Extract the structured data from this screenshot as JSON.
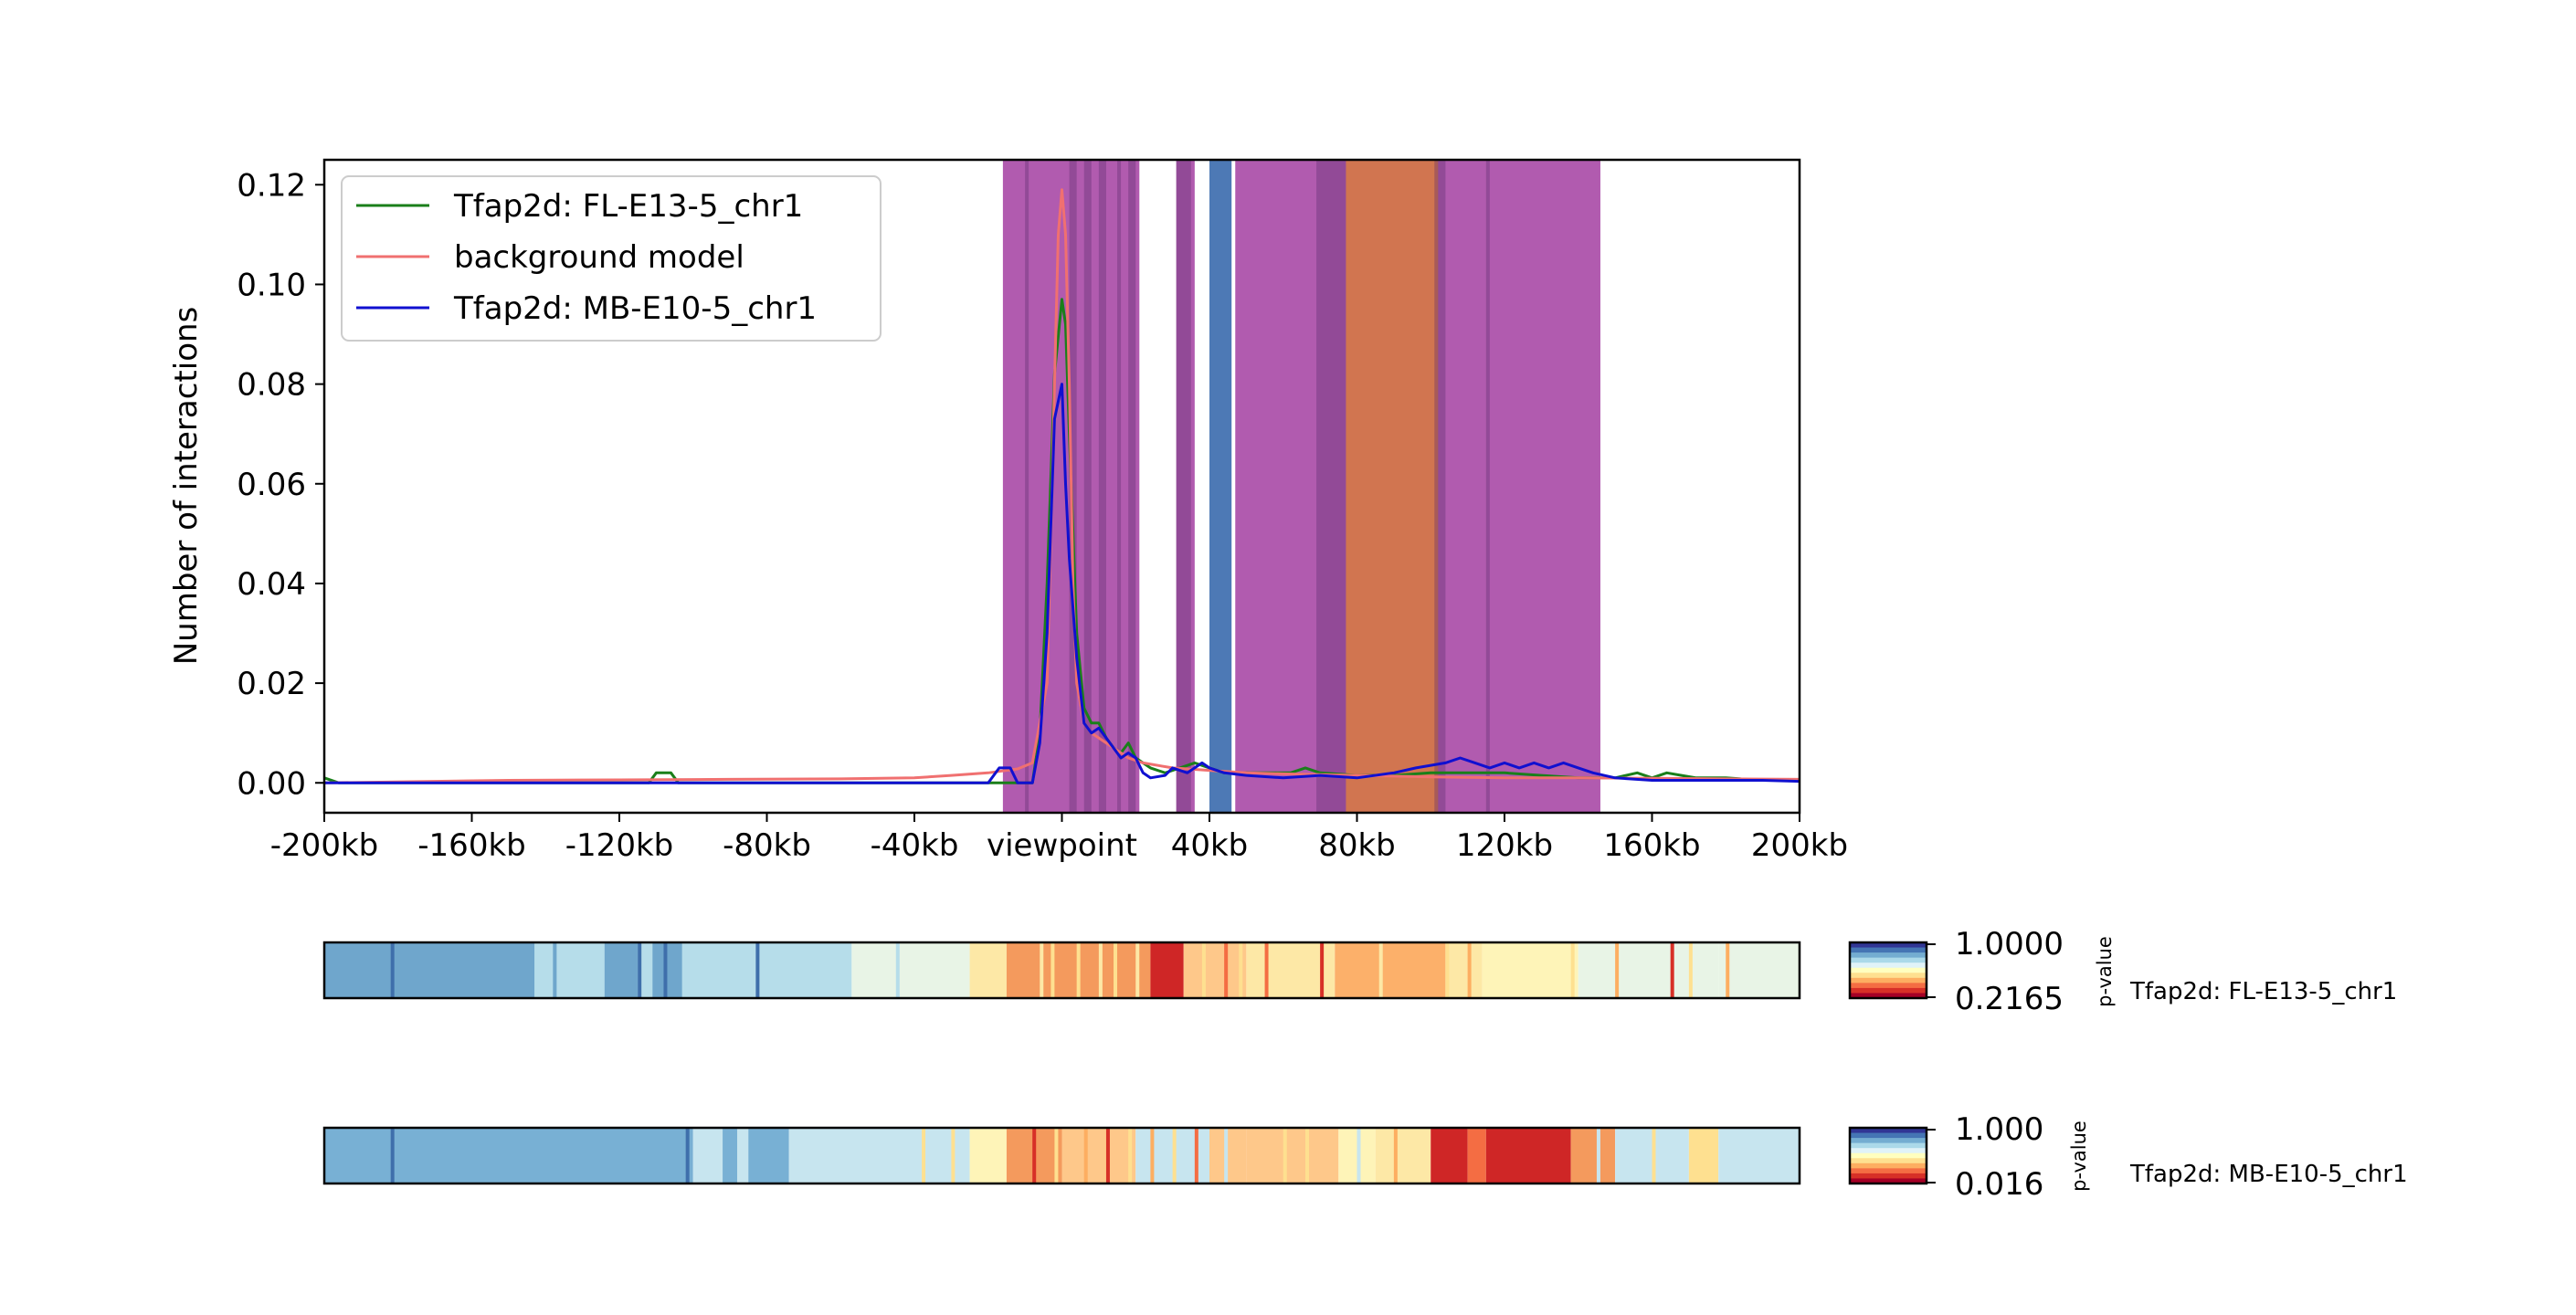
{
  "chart_data": [
    {
      "type": "line",
      "ylabel": "Number of interactions",
      "xlim": [
        -200,
        200
      ],
      "ylim": [
        -0.006,
        0.125
      ],
      "x_ticks": [
        -200,
        -160,
        -120,
        -80,
        -40,
        0,
        40,
        80,
        120,
        160,
        200
      ],
      "x_tick_labels": [
        "-200kb",
        "-160kb",
        "-120kb",
        "-80kb",
        "-40kb",
        "viewpoint",
        "40kb",
        "80kb",
        "120kb",
        "160kb",
        "200kb"
      ],
      "y_ticks": [
        0.0,
        0.02,
        0.04,
        0.06,
        0.08,
        0.1,
        0.12
      ],
      "y_tick_labels": [
        "0.00",
        "0.02",
        "0.04",
        "0.06",
        "0.08",
        "0.10",
        "0.12"
      ],
      "legend_position": "top-left",
      "series": [
        {
          "name": "Tfap2d:  FL-E13-5_chr1",
          "color": "#1a7f1a",
          "points": [
            [
              -200,
              0.001
            ],
            [
              -196,
              0.0
            ],
            [
              -150,
              0.0
            ],
            [
              -112,
              0.0
            ],
            [
              -110,
              0.002
            ],
            [
              -106,
              0.002
            ],
            [
              -104,
              0.0
            ],
            [
              -90,
              0.0
            ],
            [
              -60,
              0.0
            ],
            [
              -20,
              0.0
            ],
            [
              -8,
              0.0
            ],
            [
              -6,
              0.01
            ],
            [
              -4,
              0.04
            ],
            [
              -2,
              0.082
            ],
            [
              0,
              0.097
            ],
            [
              1,
              0.092
            ],
            [
              2,
              0.07
            ],
            [
              4,
              0.03
            ],
            [
              6,
              0.015
            ],
            [
              8,
              0.012
            ],
            [
              10,
              0.012
            ],
            [
              12,
              0.009
            ],
            [
              14,
              0.007
            ],
            [
              16,
              0.006
            ],
            [
              18,
              0.008
            ],
            [
              20,
              0.005
            ],
            [
              24,
              0.003
            ],
            [
              28,
              0.002
            ],
            [
              32,
              0.003
            ],
            [
              36,
              0.004
            ],
            [
              40,
              0.003
            ],
            [
              44,
              0.002
            ],
            [
              50,
              0.002
            ],
            [
              56,
              0.002
            ],
            [
              62,
              0.002
            ],
            [
              66,
              0.003
            ],
            [
              70,
              0.002
            ],
            [
              80,
              0.0015
            ],
            [
              90,
              0.0015
            ],
            [
              100,
              0.002
            ],
            [
              110,
              0.002
            ],
            [
              120,
              0.002
            ],
            [
              130,
              0.0015
            ],
            [
              140,
              0.001
            ],
            [
              150,
              0.001
            ],
            [
              156,
              0.002
            ],
            [
              160,
              0.001
            ],
            [
              164,
              0.002
            ],
            [
              168,
              0.0015
            ],
            [
              172,
              0.001
            ],
            [
              180,
              0.001
            ],
            [
              190,
              0.0005
            ],
            [
              200,
              0.0005
            ]
          ]
        },
        {
          "name": "background model",
          "color": "#f07070",
          "points": [
            [
              -200,
              0.0
            ],
            [
              -150,
              0.0005
            ],
            [
              -120,
              0.0006
            ],
            [
              -90,
              0.0007
            ],
            [
              -60,
              0.0008
            ],
            [
              -40,
              0.001
            ],
            [
              -30,
              0.0015
            ],
            [
              -20,
              0.002
            ],
            [
              -12,
              0.0028
            ],
            [
              -8,
              0.004
            ],
            [
              -4,
              0.02
            ],
            [
              -2,
              0.08
            ],
            [
              -1,
              0.11
            ],
            [
              0,
              0.119
            ],
            [
              1,
              0.11
            ],
            [
              2,
              0.08
            ],
            [
              3,
              0.04
            ],
            [
              4,
              0.02
            ],
            [
              6,
              0.012
            ],
            [
              8,
              0.01
            ],
            [
              10,
              0.009
            ],
            [
              14,
              0.007
            ],
            [
              18,
              0.005
            ],
            [
              22,
              0.004
            ],
            [
              30,
              0.003
            ],
            [
              40,
              0.0025
            ],
            [
              50,
              0.002
            ],
            [
              60,
              0.0018
            ],
            [
              80,
              0.0015
            ],
            [
              100,
              0.0012
            ],
            [
              120,
              0.001
            ],
            [
              140,
              0.001
            ],
            [
              160,
              0.0009
            ],
            [
              180,
              0.0008
            ],
            [
              200,
              0.0007
            ]
          ]
        },
        {
          "name": "Tfap2d:  MB-E10-5_chr1",
          "color": "#1010d0",
          "points": [
            [
              -200,
              0.0
            ],
            [
              -150,
              0.0
            ],
            [
              -100,
              0.0
            ],
            [
              -60,
              0.0
            ],
            [
              -20,
              0.0
            ],
            [
              -17,
              0.003
            ],
            [
              -14,
              0.003
            ],
            [
              -12,
              0.0
            ],
            [
              -8,
              0.0
            ],
            [
              -6,
              0.008
            ],
            [
              -4,
              0.03
            ],
            [
              -2,
              0.073
            ],
            [
              0,
              0.08
            ],
            [
              1,
              0.06
            ],
            [
              2,
              0.045
            ],
            [
              4,
              0.025
            ],
            [
              6,
              0.012
            ],
            [
              8,
              0.01
            ],
            [
              10,
              0.011
            ],
            [
              12,
              0.009
            ],
            [
              14,
              0.007
            ],
            [
              16,
              0.005
            ],
            [
              18,
              0.006
            ],
            [
              20,
              0.005
            ],
            [
              22,
              0.002
            ],
            [
              24,
              0.001
            ],
            [
              28,
              0.0015
            ],
            [
              30,
              0.003
            ],
            [
              34,
              0.002
            ],
            [
              36,
              0.003
            ],
            [
              38,
              0.004
            ],
            [
              40,
              0.003
            ],
            [
              44,
              0.002
            ],
            [
              50,
              0.0015
            ],
            [
              60,
              0.001
            ],
            [
              70,
              0.0015
            ],
            [
              80,
              0.001
            ],
            [
              90,
              0.002
            ],
            [
              96,
              0.003
            ],
            [
              100,
              0.0035
            ],
            [
              104,
              0.004
            ],
            [
              108,
              0.005
            ],
            [
              112,
              0.004
            ],
            [
              116,
              0.003
            ],
            [
              120,
              0.004
            ],
            [
              124,
              0.003
            ],
            [
              128,
              0.004
            ],
            [
              132,
              0.003
            ],
            [
              136,
              0.004
            ],
            [
              140,
              0.003
            ],
            [
              144,
              0.002
            ],
            [
              150,
              0.001
            ],
            [
              160,
              0.0005
            ],
            [
              170,
              0.0005
            ],
            [
              180,
              0.0005
            ],
            [
              190,
              0.0005
            ],
            [
              200,
              0.0003
            ]
          ]
        }
      ],
      "highlight_regions": [
        {
          "start": -16,
          "end": 21,
          "color": "#a33ea1"
        },
        {
          "start": 31,
          "end": 36,
          "color": "#a33ea1"
        },
        {
          "start": 40,
          "end": 46,
          "color": "#2e62a8"
        },
        {
          "start": 47,
          "end": 146,
          "color": "#a33ea1"
        },
        {
          "start": 77,
          "end": 102,
          "color": "#d77a3f"
        }
      ],
      "dark_bands": [
        [
          -10,
          -9
        ],
        [
          2,
          4
        ],
        [
          6,
          8
        ],
        [
          10,
          12
        ],
        [
          15,
          16
        ],
        [
          18,
          20
        ],
        [
          31,
          35
        ],
        [
          69,
          77
        ],
        [
          101,
          104
        ],
        [
          115,
          116
        ]
      ]
    },
    {
      "type": "heatmap",
      "label": "Tfap2d:  FL-E13-5_chr1",
      "colorbar_label": "p-value",
      "colorbar_ticks": [
        "1.0000",
        "0.2165"
      ],
      "palette": [
        "#313695",
        "#4575b4",
        "#74add1",
        "#abd9e9",
        "#e0f3f8",
        "#ffffbf",
        "#fee090",
        "#fdae61",
        "#f46d43",
        "#d73027",
        "#a50026"
      ],
      "xlim": [
        -200,
        200
      ],
      "segments": [
        {
          "start": -200,
          "end": -57,
          "color": "#b6ddea"
        },
        {
          "start": -200,
          "end": -143,
          "color": "#6fa6cc"
        },
        {
          "start": -143,
          "end": -138,
          "color": "#b6ddea"
        },
        {
          "start": -138,
          "end": -137,
          "color": "#6fa6cc"
        },
        {
          "start": -124,
          "end": -115,
          "color": "#6fa6cc"
        },
        {
          "start": -111,
          "end": -103,
          "color": "#6fa6cc"
        },
        {
          "start": -57,
          "end": -25,
          "color": "#e8f4e6"
        },
        {
          "start": -25,
          "end": -15,
          "color": "#fde8a6"
        },
        {
          "start": -15,
          "end": 24,
          "color": "#f49a5d"
        },
        {
          "start": 24,
          "end": 33,
          "color": "#cf2626"
        },
        {
          "start": 33,
          "end": 50,
          "color": "#fec88a"
        },
        {
          "start": 50,
          "end": 74,
          "color": "#fde8a6"
        },
        {
          "start": 74,
          "end": 104,
          "color": "#fcb06a"
        },
        {
          "start": 104,
          "end": 114,
          "color": "#fde8a6"
        },
        {
          "start": 114,
          "end": 140,
          "color": "#fef4b8"
        },
        {
          "start": 140,
          "end": 178,
          "color": "#e8f4e6"
        },
        {
          "start": 178,
          "end": 200,
          "color": "#e8f4e6"
        }
      ],
      "stripes": [
        [
          -182,
          "#3f6fab"
        ],
        [
          -115,
          "#3f6fab"
        ],
        [
          -108,
          "#3f6fab"
        ],
        [
          -83,
          "#3f6fab"
        ],
        [
          -45,
          "#b6ddea"
        ],
        [
          -6,
          "#fde8a6"
        ],
        [
          -3,
          "#fee090"
        ],
        [
          4,
          "#fee090"
        ],
        [
          10,
          "#fde8a6"
        ],
        [
          14,
          "#fee090"
        ],
        [
          20,
          "#fde8a6"
        ],
        [
          38,
          "#fee090"
        ],
        [
          44,
          "#f46d43"
        ],
        [
          48,
          "#fee090"
        ],
        [
          55,
          "#f46d43"
        ],
        [
          62,
          "#fde8a6"
        ],
        [
          70,
          "#d73027"
        ],
        [
          86,
          "#fde8a6"
        ],
        [
          104,
          "#fee090"
        ],
        [
          110,
          "#fdae61"
        ],
        [
          138,
          "#fee090"
        ],
        [
          150,
          "#fdae61"
        ],
        [
          165,
          "#d73027"
        ],
        [
          170,
          "#fee090"
        ],
        [
          180,
          "#fdae61"
        ]
      ]
    },
    {
      "type": "heatmap",
      "label": "Tfap2d:  MB-E10-5_chr1",
      "colorbar_label": "p-value",
      "colorbar_ticks": [
        "1.000",
        "0.016"
      ],
      "palette": [
        "#313695",
        "#4575b4",
        "#74add1",
        "#abd9e9",
        "#e0f3f8",
        "#ffffbf",
        "#fee090",
        "#fdae61",
        "#f46d43",
        "#d73027",
        "#a50026"
      ],
      "xlim": [
        -200,
        200
      ],
      "segments": [
        {
          "start": -200,
          "end": -100,
          "color": "#78b0d4"
        },
        {
          "start": -100,
          "end": -92,
          "color": "#c7e5ef"
        },
        {
          "start": -92,
          "end": -88,
          "color": "#78b0d4"
        },
        {
          "start": -88,
          "end": -77,
          "color": "#c7e5ef"
        },
        {
          "start": -85,
          "end": -74,
          "color": "#78b0d4"
        },
        {
          "start": -74,
          "end": -25,
          "color": "#c7e5ef"
        },
        {
          "start": -25,
          "end": -15,
          "color": "#fef4b8"
        },
        {
          "start": -15,
          "end": 0,
          "color": "#f49a5d"
        },
        {
          "start": 0,
          "end": 20,
          "color": "#fec88a"
        },
        {
          "start": 20,
          "end": 40,
          "color": "#c7e5ef"
        },
        {
          "start": 40,
          "end": 50,
          "color": "#fec88a"
        },
        {
          "start": 50,
          "end": 75,
          "color": "#fec88a"
        },
        {
          "start": 75,
          "end": 85,
          "color": "#fef4b8"
        },
        {
          "start": 85,
          "end": 100,
          "color": "#fde8a6"
        },
        {
          "start": 100,
          "end": 110,
          "color": "#cf2626"
        },
        {
          "start": 110,
          "end": 115,
          "color": "#f46d43"
        },
        {
          "start": 115,
          "end": 138,
          "color": "#cf2626"
        },
        {
          "start": 138,
          "end": 150,
          "color": "#f49a5d"
        },
        {
          "start": 150,
          "end": 170,
          "color": "#c7e5ef"
        },
        {
          "start": 170,
          "end": 178,
          "color": "#fee090"
        },
        {
          "start": 178,
          "end": 200,
          "color": "#c7e5ef"
        }
      ],
      "stripes": [
        [
          -182,
          "#3f6fab"
        ],
        [
          -102,
          "#3f6fab"
        ],
        [
          -38,
          "#fee090"
        ],
        [
          -30,
          "#fee090"
        ],
        [
          -8,
          "#d73027"
        ],
        [
          -2,
          "#fee090"
        ],
        [
          6,
          "#fdae61"
        ],
        [
          12,
          "#d73027"
        ],
        [
          18,
          "#fee090"
        ],
        [
          24,
          "#fdae61"
        ],
        [
          30,
          "#fee090"
        ],
        [
          36,
          "#f46d43"
        ],
        [
          44,
          "#c7e5ef"
        ],
        [
          60,
          "#fee090"
        ],
        [
          66,
          "#fee090"
        ],
        [
          80,
          "#c7e5ef"
        ],
        [
          90,
          "#fdae61"
        ],
        [
          145,
          "#c7e5ef"
        ],
        [
          160,
          "#fee090"
        ]
      ]
    }
  ]
}
